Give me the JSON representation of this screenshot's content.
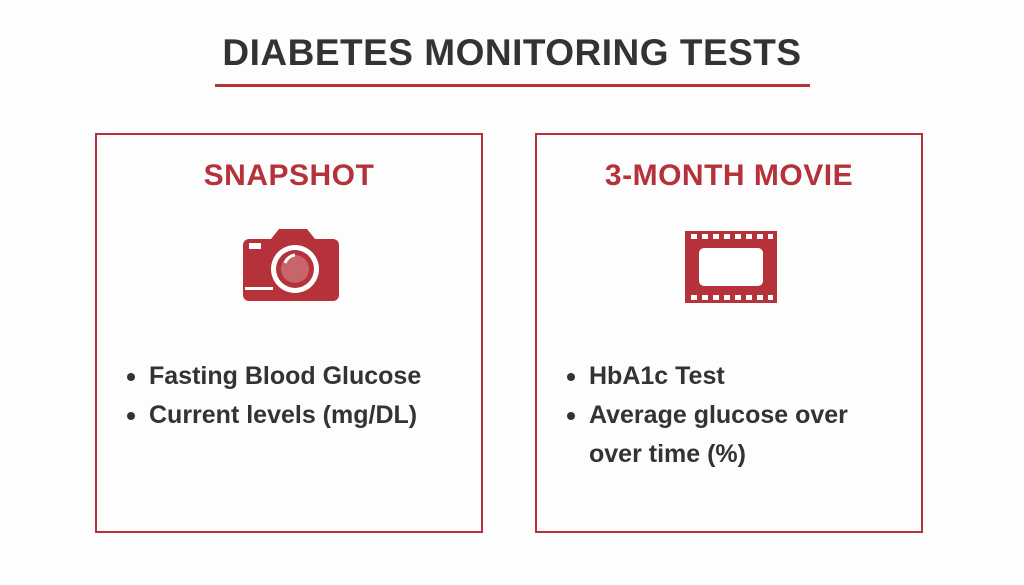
{
  "header": {
    "title": "DIABETES MONITORING TESTS"
  },
  "panels": [
    {
      "title": "SNAPSHOT",
      "items": [
        "Fasting Blood Glucose",
        "Current levels (mg/DL)"
      ]
    },
    {
      "title": "3-MONTH MOVIE",
      "items": [
        "HbA1c Test",
        "Average glucose over over time (%)"
      ]
    }
  ]
}
